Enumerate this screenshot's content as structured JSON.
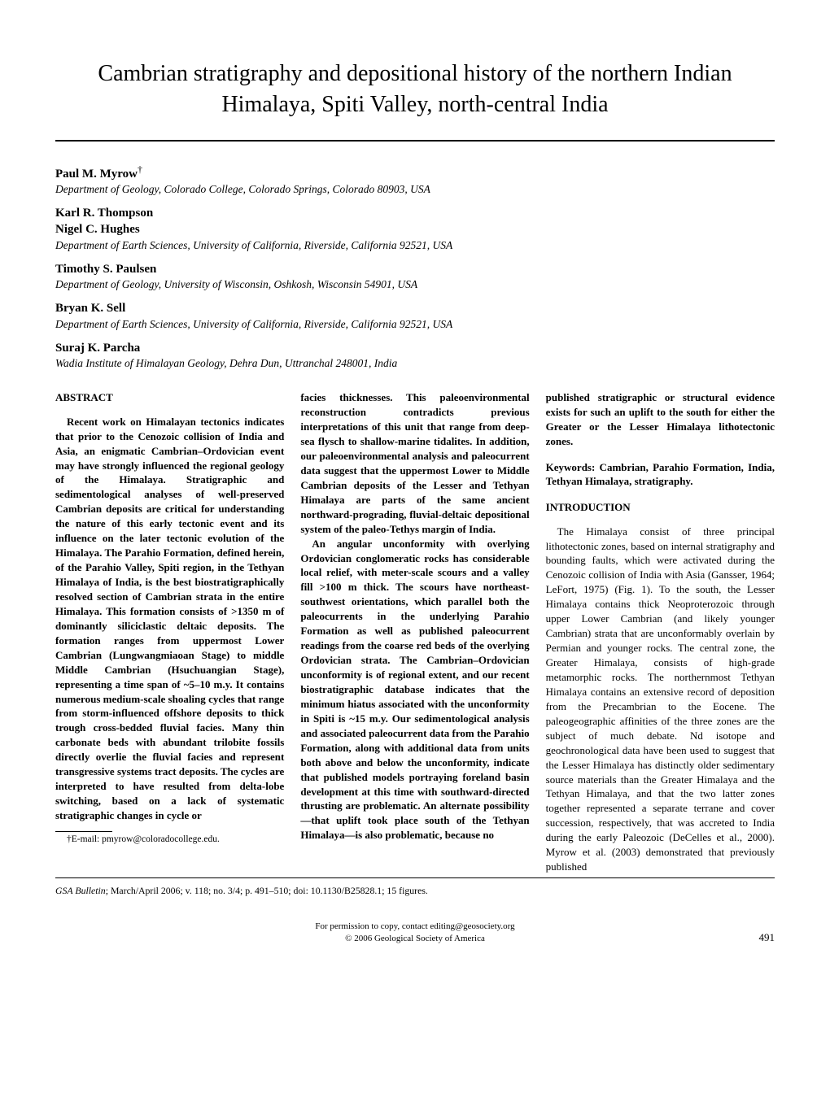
{
  "title": "Cambrian stratigraphy and depositional history of the northern Indian Himalaya, Spiti Valley, north-central India",
  "authors": [
    {
      "name": "Paul M. Myrow",
      "dagger": "†",
      "affiliation": "Department of Geology, Colorado College, Colorado Springs, Colorado 80903, USA"
    },
    {
      "name": "Karl R. Thompson",
      "affiliation_shared_next": true
    },
    {
      "name": "Nigel C. Hughes",
      "affiliation": "Department of Earth Sciences, University of California, Riverside, California 92521, USA"
    },
    {
      "name": "Timothy S. Paulsen",
      "affiliation": "Department of Geology, University of Wisconsin, Oshkosh, Wisconsin 54901, USA"
    },
    {
      "name": "Bryan K. Sell",
      "affiliation": "Department of Earth Sciences, University of California, Riverside, California 92521, USA"
    },
    {
      "name": "Suraj K. Parcha",
      "affiliation": "Wadia Institute of Himalayan Geology, Dehra Dun, Uttranchal 248001, India"
    }
  ],
  "abstract": {
    "heading": "ABSTRACT",
    "p1": "Recent work on Himalayan tectonics indicates that prior to the Cenozoic collision of India and Asia, an enigmatic Cambrian–Ordovician event may have strongly influenced the regional geology of the Himalaya. Stratigraphic and sedimentological analyses of well-preserved Cambrian deposits are critical for understanding the nature of this early tectonic event and its influence on the later tectonic evolution of the Himalaya. The Parahio Formation, defined herein, of the Parahio Valley, Spiti region, in the Tethyan Himalaya of India, is the best biostratigraphically resolved section of Cambrian strata in the entire Himalaya. This formation consists of >1350 m of dominantly siliciclastic deltaic deposits. The formation ranges from uppermost Lower Cambrian (Lungwangmiaoan Stage) to middle Middle Cambrian (Hsuchuangian Stage), representing a time span of ~5–10 m.y. It contains numerous medium-scale shoaling cycles that range from storm-influenced offshore deposits to thick trough cross-bedded fluvial facies. Many thin carbonate beds with abundant trilobite fossils directly overlie the fluvial facies and represent transgressive systems tract deposits. The cycles are interpreted to have resulted from delta-lobe switching, based on a lack of systematic stratigraphic changes in cycle or",
    "p1c": "facies thicknesses. This paleoenvironmental reconstruction contradicts previous interpretations of this unit that range from deep-sea flysch to shallow-marine tidalites. In addition, our paleoenvironmental analysis and paleocurrent data suggest that the uppermost Lower to Middle Cambrian deposits of the Lesser and Tethyan Himalaya are parts of the same ancient northward-prograding, fluvial-deltaic depositional system of the paleo-Tethys margin of India.",
    "p2": "An angular unconformity with overlying Ordovician conglomeratic rocks has considerable local relief, with meter-scale scours and a valley fill >100 m thick. The scours have northeast-southwest orientations, which parallel both the paleocurrents in the underlying Parahio Formation as well as published paleocurrent readings from the coarse red beds of the overlying Ordovician strata. The Cambrian–Ordovician unconformity is of regional extent, and our recent biostratigraphic database indicates that the minimum hiatus associated with the unconformity in Spiti is ~15 m.y. Our sedimentological analysis and associated paleocurrent data from the Parahio Formation, along with additional data from units both above and below the unconformity, indicate that published models portraying foreland basin development at this time with southward-directed thrusting are problematic. An alternate possibility—that uplift took place south of the Tethyan Himalaya—is also problematic, because no",
    "p2c": "published stratigraphic or structural evidence exists for such an uplift to the south for either the Greater or the Lesser Himalaya lithotectonic zones."
  },
  "keywords": "Keywords: Cambrian, Parahio Formation, India, Tethyan Himalaya, stratigraphy.",
  "introduction": {
    "heading": "INTRODUCTION",
    "p1": "The Himalaya consist of three principal lithotectonic zones, based on internal stratigraphy and bounding faults, which were activated during the Cenozoic collision of India with Asia (Gansser, 1964; LeFort, 1975) (Fig. 1). To the south, the Lesser Himalaya contains thick Neoproterozoic through upper Lower Cambrian (and likely younger Cambrian) strata that are unconformably overlain by Permian and younger rocks. The central zone, the Greater Himalaya, consists of high-grade metamorphic rocks. The northernmost Tethyan Himalaya contains an extensive record of deposition from the Precambrian to the Eocene. The paleogeographic affinities of the three zones are the subject of much debate. Nd isotope and geochronological data have been used to suggest that the Lesser Himalaya has distinctly older sedimentary source materials than the Greater Himalaya and the Tethyan Himalaya, and that the two latter zones together represented a separate terrane and cover succession, respectively, that was accreted to India during the early Paleozoic (DeCelles et al., 2000). Myrow et al. (2003) demonstrated that previously published"
  },
  "footnote": "†E-mail: pmyrow@coloradocollege.edu.",
  "citation": {
    "journal": "GSA Bulletin",
    "rest": "; March/April 2006; v. 118; no. 3/4; p. 491–510; doi: 10.1130/B25828.1; 15 figures."
  },
  "footer": {
    "line1": "For permission to copy, contact editing@geosociety.org",
    "line2": "© 2006 Geological Society of America",
    "page": "491"
  }
}
